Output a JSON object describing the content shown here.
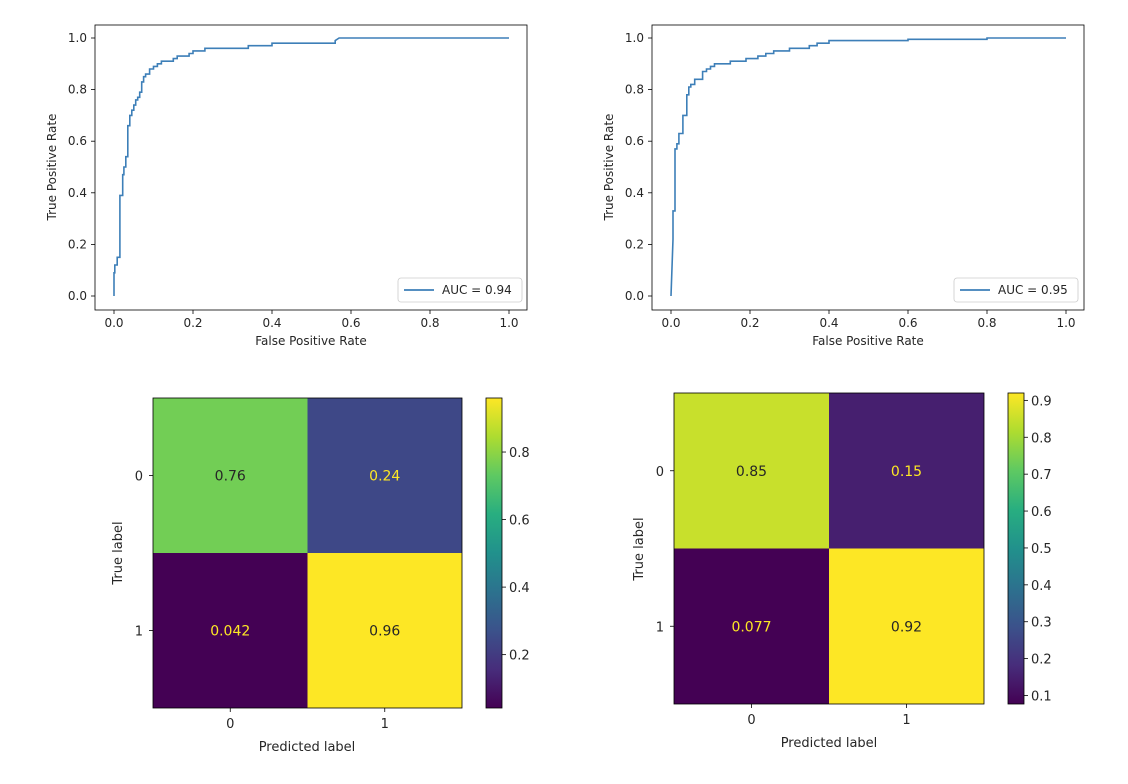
{
  "chart_data": [
    {
      "type": "line",
      "panel": "top-left",
      "xlabel": "False Positive Rate",
      "ylabel": "True Positive Rate",
      "xlim": [
        0.0,
        1.0
      ],
      "ylim": [
        0.0,
        1.0
      ],
      "xticks": [
        "0.0",
        "0.2",
        "0.4",
        "0.6",
        "0.8",
        "1.0"
      ],
      "yticks": [
        "0.0",
        "0.2",
        "0.4",
        "0.6",
        "0.8",
        "1.0"
      ],
      "legend": {
        "label": "AUC = 0.94",
        "position": "lower-right"
      },
      "color": "#3d7fb8",
      "x": [
        0.0,
        0.0,
        0.002,
        0.002,
        0.008,
        0.008,
        0.015,
        0.015,
        0.022,
        0.022,
        0.025,
        0.025,
        0.03,
        0.03,
        0.035,
        0.035,
        0.04,
        0.04,
        0.045,
        0.045,
        0.05,
        0.05,
        0.055,
        0.055,
        0.06,
        0.06,
        0.065,
        0.065,
        0.07,
        0.07,
        0.075,
        0.075,
        0.08,
        0.08,
        0.09,
        0.09,
        0.1,
        0.1,
        0.11,
        0.11,
        0.12,
        0.12,
        0.15,
        0.15,
        0.16,
        0.16,
        0.19,
        0.19,
        0.2,
        0.2,
        0.23,
        0.23,
        0.34,
        0.34,
        0.4,
        0.4,
        0.56,
        0.56,
        0.57,
        1.0
      ],
      "y": [
        0.0,
        0.09,
        0.09,
        0.12,
        0.12,
        0.15,
        0.15,
        0.39,
        0.39,
        0.47,
        0.47,
        0.5,
        0.5,
        0.54,
        0.54,
        0.66,
        0.66,
        0.7,
        0.7,
        0.72,
        0.72,
        0.74,
        0.74,
        0.76,
        0.76,
        0.77,
        0.77,
        0.79,
        0.79,
        0.83,
        0.83,
        0.85,
        0.85,
        0.86,
        0.86,
        0.88,
        0.88,
        0.89,
        0.89,
        0.9,
        0.9,
        0.91,
        0.91,
        0.92,
        0.92,
        0.93,
        0.93,
        0.94,
        0.94,
        0.95,
        0.95,
        0.96,
        0.96,
        0.97,
        0.97,
        0.98,
        0.98,
        0.99,
        1.0,
        1.0
      ]
    },
    {
      "type": "line",
      "panel": "top-right",
      "xlabel": "False Positive Rate",
      "ylabel": "True Positive Rate",
      "xlim": [
        0.0,
        1.0
      ],
      "ylim": [
        0.0,
        1.0
      ],
      "xticks": [
        "0.0",
        "0.2",
        "0.4",
        "0.6",
        "0.8",
        "1.0"
      ],
      "yticks": [
        "0.0",
        "0.2",
        "0.4",
        "0.6",
        "0.8",
        "1.0"
      ],
      "legend": {
        "label": "AUC = 0.95",
        "position": "lower-right"
      },
      "color": "#3d7fb8",
      "x": [
        0.0,
        0.005,
        0.005,
        0.01,
        0.01,
        0.015,
        0.015,
        0.02,
        0.02,
        0.03,
        0.03,
        0.04,
        0.04,
        0.045,
        0.045,
        0.05,
        0.05,
        0.06,
        0.06,
        0.08,
        0.08,
        0.09,
        0.09,
        0.1,
        0.1,
        0.11,
        0.11,
        0.15,
        0.15,
        0.19,
        0.19,
        0.22,
        0.22,
        0.24,
        0.24,
        0.26,
        0.26,
        0.3,
        0.3,
        0.35,
        0.35,
        0.37,
        0.37,
        0.4,
        0.4,
        0.6,
        0.6,
        0.8,
        0.8,
        1.0
      ],
      "y": [
        0.0,
        0.22,
        0.33,
        0.33,
        0.57,
        0.57,
        0.59,
        0.59,
        0.63,
        0.63,
        0.7,
        0.7,
        0.78,
        0.78,
        0.81,
        0.81,
        0.82,
        0.82,
        0.84,
        0.84,
        0.87,
        0.87,
        0.88,
        0.88,
        0.89,
        0.89,
        0.9,
        0.9,
        0.91,
        0.91,
        0.92,
        0.92,
        0.93,
        0.93,
        0.94,
        0.94,
        0.95,
        0.95,
        0.96,
        0.96,
        0.97,
        0.97,
        0.98,
        0.98,
        0.99,
        0.99,
        0.995,
        0.995,
        1.0,
        1.0
      ]
    },
    {
      "type": "heatmap",
      "panel": "bottom-left",
      "xlabel": "Predicted label",
      "ylabel": "True label",
      "xticks": [
        "0",
        "1"
      ],
      "yticks": [
        "0",
        "1"
      ],
      "values": [
        [
          0.76,
          0.24
        ],
        [
          0.042,
          0.96
        ]
      ],
      "labels": [
        [
          "0.76",
          "0.24"
        ],
        [
          "0.042",
          "0.96"
        ]
      ],
      "colormap": "viridis",
      "vmin": 0.042,
      "vmax": 0.96,
      "colorbar_ticks": [
        0.2,
        0.4,
        0.6,
        0.8
      ],
      "colorbar_tick_labels": [
        "0.2",
        "0.4",
        "0.6",
        "0.8"
      ]
    },
    {
      "type": "heatmap",
      "panel": "bottom-right",
      "xlabel": "Predicted label",
      "ylabel": "True label",
      "xticks": [
        "0",
        "1"
      ],
      "yticks": [
        "0",
        "1"
      ],
      "values": [
        [
          0.85,
          0.15
        ],
        [
          0.077,
          0.92
        ]
      ],
      "labels": [
        [
          "0.85",
          "0.15"
        ],
        [
          "0.077",
          "0.92"
        ]
      ],
      "colormap": "viridis",
      "vmin": 0.077,
      "vmax": 0.92,
      "colorbar_ticks": [
        0.1,
        0.2,
        0.3,
        0.4,
        0.5,
        0.6,
        0.7,
        0.8,
        0.9
      ],
      "colorbar_tick_labels": [
        "0.1",
        "0.2",
        "0.3",
        "0.4",
        "0.5",
        "0.6",
        "0.7",
        "0.8",
        "0.9"
      ]
    }
  ]
}
